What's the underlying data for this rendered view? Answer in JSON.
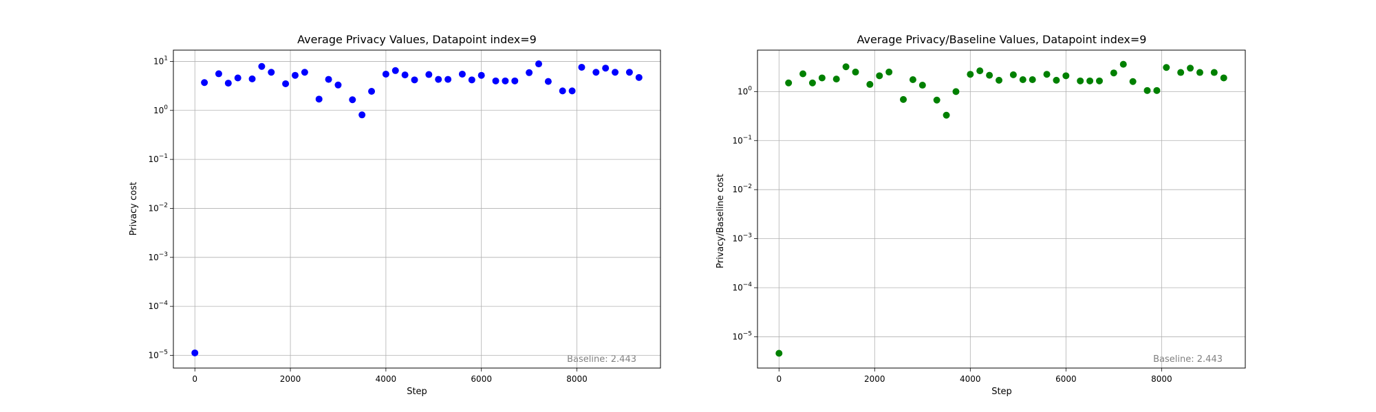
{
  "chart_data": [
    {
      "type": "scatter",
      "title": "Average Privacy Values, Datapoint index=9",
      "xlabel": "Step",
      "ylabel": "Privacy cost",
      "xlim": [
        -450,
        9750
      ],
      "ylim": [
        5.5e-06,
        17
      ],
      "yscale": "log",
      "xticks": [
        0,
        2000,
        4000,
        6000,
        8000
      ],
      "yticks": [
        1e-05,
        0.0001,
        0.001,
        0.01,
        0.1,
        1,
        10
      ],
      "grid": true,
      "marker_color": "#0000ff",
      "annotation": "Baseline: 2.443",
      "annotation_position": "bottom-right",
      "x": [
        0,
        200,
        500,
        700,
        900,
        1200,
        1400,
        1600,
        1900,
        2100,
        2300,
        2600,
        2800,
        3000,
        3300,
        3500,
        3700,
        4000,
        4200,
        4400,
        4600,
        4900,
        5100,
        5300,
        5600,
        5800,
        6000,
        6300,
        6500,
        6700,
        7000,
        7200,
        7400,
        7700,
        7900,
        8100,
        8400,
        8600,
        8800,
        9100,
        9300
      ],
      "y": [
        1.12e-05,
        3.7,
        5.6,
        3.6,
        4.6,
        4.4,
        7.9,
        6.0,
        3.5,
        5.2,
        6.0,
        1.7,
        4.3,
        3.3,
        1.65,
        0.81,
        2.45,
        5.5,
        6.5,
        5.3,
        4.2,
        5.4,
        4.3,
        4.3,
        5.5,
        4.2,
        5.2,
        4.0,
        4.0,
        4.0,
        5.9,
        8.9,
        3.9,
        2.5,
        2.5,
        7.6,
        6.0,
        7.3,
        6.0,
        6.0,
        4.7
      ]
    },
    {
      "type": "scatter",
      "title": "Average Privacy/Baseline Values, Datapoint index=9",
      "xlabel": "Step",
      "ylabel": "Privacy/Baseline cost",
      "xlim": [
        -450,
        9750
      ],
      "ylim": [
        2.3e-06,
        7
      ],
      "yscale": "log",
      "xticks": [
        0,
        2000,
        4000,
        6000,
        8000
      ],
      "yticks": [
        1e-05,
        0.0001,
        0.001,
        0.01,
        0.1,
        1
      ],
      "grid": true,
      "marker_color": "#008000",
      "annotation": "Baseline: 2.443",
      "annotation_position": "bottom-right",
      "x": [
        0,
        200,
        500,
        700,
        900,
        1200,
        1400,
        1600,
        1900,
        2100,
        2300,
        2600,
        2800,
        3000,
        3300,
        3500,
        3700,
        4000,
        4200,
        4400,
        4600,
        4900,
        5100,
        5300,
        5600,
        5800,
        6000,
        6300,
        6500,
        6700,
        7000,
        7200,
        7400,
        7700,
        7900,
        8100,
        8400,
        8600,
        8800,
        9100,
        9300
      ],
      "y": [
        4.6e-06,
        1.5,
        2.3,
        1.5,
        1.9,
        1.8,
        3.2,
        2.5,
        1.4,
        2.1,
        2.5,
        0.69,
        1.75,
        1.35,
        0.67,
        0.33,
        1.0,
        2.25,
        2.65,
        2.15,
        1.7,
        2.2,
        1.75,
        1.75,
        2.25,
        1.7,
        2.1,
        1.65,
        1.65,
        1.65,
        2.4,
        3.6,
        1.6,
        1.05,
        1.05,
        3.1,
        2.45,
        3.0,
        2.45,
        2.45,
        1.9
      ]
    }
  ]
}
